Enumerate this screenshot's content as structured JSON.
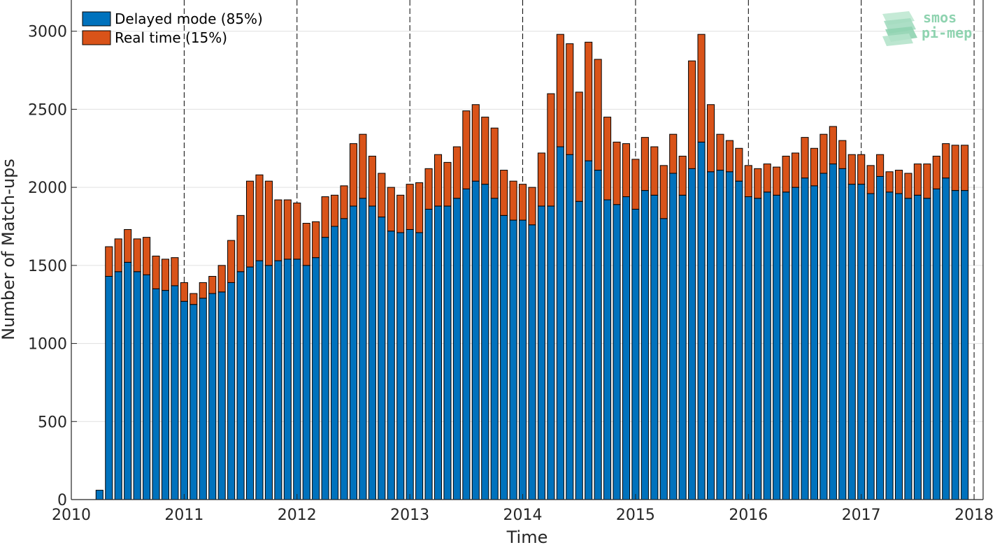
{
  "chart_data": {
    "type": "bar",
    "stacked": true,
    "title": "",
    "xlabel": "Time",
    "ylabel": "Number of Match-ups",
    "xlim": [
      2010.0,
      2018.08
    ],
    "ylim": [
      0,
      3200
    ],
    "xticks": [
      2010,
      2011,
      2012,
      2013,
      2014,
      2015,
      2016,
      2017,
      2018
    ],
    "yticks": [
      0,
      500,
      1000,
      1500,
      2000,
      2500,
      3000
    ],
    "grid": "horizontal",
    "year_lines": "dashed vertical",
    "legend_placement": "top-left",
    "colors": {
      "delayed": "#0072BD",
      "realtime": "#D95319"
    },
    "months_start": "2010-04",
    "series": [
      {
        "name": "Delayed mode (85%)",
        "values": [
          60,
          1430,
          1460,
          1520,
          1460,
          1440,
          1350,
          1340,
          1370,
          1270,
          1250,
          1290,
          1320,
          1330,
          1390,
          1460,
          1490,
          1530,
          1500,
          1530,
          1540,
          1540,
          1500,
          1550,
          1680,
          1750,
          1800,
          1880,
          1930,
          1880,
          1810,
          1720,
          1710,
          1730,
          1710,
          1860,
          1880,
          1880,
          1930,
          1990,
          2040,
          2020,
          1930,
          1820,
          1790,
          1790,
          1760,
          1880,
          1880,
          2260,
          2210,
          1910,
          2170,
          2110,
          1920,
          1890,
          1940,
          1860,
          1980,
          1950,
          1800,
          2090,
          1950,
          2120,
          2290,
          2100,
          2110,
          2100,
          2040,
          1940,
          1930,
          1970,
          1950,
          1970,
          2000,
          2060,
          2010,
          2090,
          2150,
          2120,
          2020,
          2020,
          1960,
          2070,
          1970,
          1960,
          1930,
          1950,
          1930,
          1990,
          2060,
          1980,
          1980
        ],
        "show_legend_as": "Delayed mode (85%)"
      },
      {
        "name": "Real time (15%)",
        "values": [
          0,
          190,
          210,
          210,
          210,
          240,
          210,
          200,
          180,
          120,
          70,
          100,
          110,
          170,
          270,
          360,
          550,
          550,
          540,
          390,
          380,
          360,
          270,
          230,
          260,
          200,
          210,
          400,
          410,
          320,
          280,
          280,
          240,
          290,
          320,
          260,
          330,
          280,
          330,
          500,
          490,
          430,
          450,
          290,
          250,
          230,
          240,
          340,
          720,
          720,
          710,
          700,
          760,
          710,
          530,
          400,
          340,
          320,
          340,
          310,
          340,
          250,
          250,
          690,
          690,
          430,
          230,
          200,
          210,
          200,
          190,
          180,
          180,
          230,
          220,
          260,
          240,
          250,
          240,
          180,
          190,
          190,
          180,
          140,
          130,
          150,
          160,
          200,
          220,
          210,
          220,
          290,
          290
        ],
        "show_legend_as": "Real time (15%)"
      }
    ]
  },
  "legend": [
    {
      "label": "Delayed mode (85%)",
      "color": "#0072BD"
    },
    {
      "label": "Real time (15%)",
      "color": "#D95319"
    }
  ],
  "logo": {
    "line1": "smos",
    "line2": "pi-mep"
  }
}
